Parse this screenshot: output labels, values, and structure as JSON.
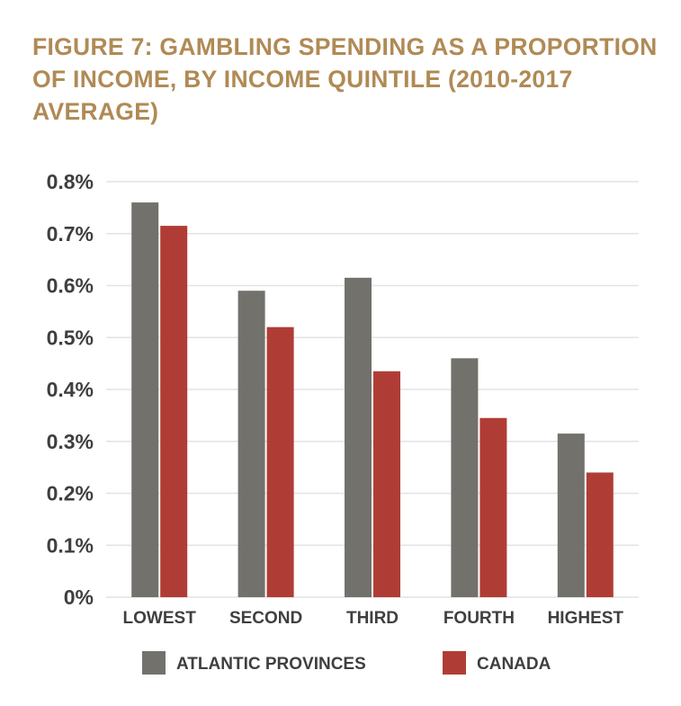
{
  "chart_data": {
    "type": "bar",
    "title": "FIGURE 7: GAMBLING SPENDING AS A PROPORTION OF INCOME, BY INCOME QUINTILE (2010-2017 AVERAGE)",
    "categories": [
      "LOWEST",
      "SECOND",
      "THIRD",
      "FOURTH",
      "HIGHEST"
    ],
    "series": [
      {
        "name": "ATLANTIC PROVINCES",
        "color": "#72716c",
        "values": [
          0.76,
          0.59,
          0.615,
          0.46,
          0.315
        ]
      },
      {
        "name": "CANADA",
        "color": "#b03d35",
        "values": [
          0.715,
          0.52,
          0.435,
          0.345,
          0.24
        ]
      }
    ],
    "yticks": [
      "0%",
      "0.1%",
      "0.2%",
      "0.3%",
      "0.4%",
      "0.5%",
      "0.6%",
      "0.7%",
      "0.8%"
    ],
    "ylim": [
      0,
      0.8
    ],
    "grid": true,
    "legend_position": "bottom"
  }
}
